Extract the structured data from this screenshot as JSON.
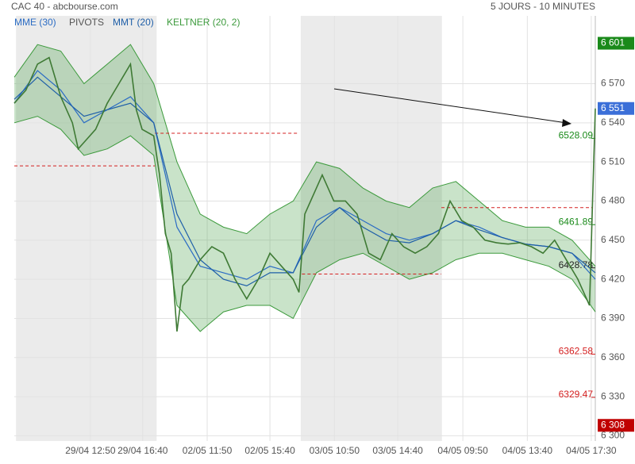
{
  "chart_data": {
    "type": "line",
    "title": "CAC 40 - abcbourse.com",
    "subtitle": "5 JOURS - 10 MINUTES",
    "xlim": [
      0,
      100
    ],
    "ylim": [
      6296,
      6622
    ],
    "xticks": [
      {
        "value": 13.1,
        "label": "29/04 12:50"
      },
      {
        "value": 22.1,
        "label": "29/04 16:40"
      },
      {
        "value": 33.2,
        "label": "02/05 11:50"
      },
      {
        "value": 44.0,
        "label": "02/05 15:40"
      },
      {
        "value": 55.1,
        "label": "03/05 10:50"
      },
      {
        "value": 66.0,
        "label": "03/05 14:40"
      },
      {
        "value": 77.2,
        "label": "04/05 09:50"
      },
      {
        "value": 88.3,
        "label": "04/05 13:40"
      },
      {
        "value": 99.3,
        "label": "04/05 17:30"
      }
    ],
    "yticks": [
      {
        "value": 6300,
        "label": "6 300"
      },
      {
        "value": 6330,
        "label": "6 330"
      },
      {
        "value": 6360,
        "label": "6 360"
      },
      {
        "value": 6390,
        "label": "6 390"
      },
      {
        "value": 6420,
        "label": "6 420"
      },
      {
        "value": 6450,
        "label": "6 450"
      },
      {
        "value": 6480,
        "label": "6 480"
      },
      {
        "value": 6510,
        "label": "6 510"
      },
      {
        "value": 6540,
        "label": "6 540"
      },
      {
        "value": 6570,
        "label": "6 570"
      }
    ],
    "grid": true,
    "shaded_sessions": [
      [
        0.3,
        24.5
      ],
      [
        49.3,
        73.6
      ]
    ],
    "price": {
      "color": "#3f7a35",
      "x": [
        0,
        2,
        4,
        6,
        8,
        10,
        11,
        12,
        14,
        16,
        18,
        20,
        21,
        22,
        24,
        25,
        26,
        27,
        28,
        29,
        30,
        32,
        34,
        36,
        38,
        40,
        42,
        44,
        46,
        48,
        49,
        50,
        52,
        53,
        55,
        57,
        59,
        61,
        63,
        65,
        67,
        69,
        71,
        73,
        75,
        77,
        79,
        81,
        83,
        85,
        87,
        89,
        91,
        93,
        95,
        97,
        98,
        99,
        100
      ],
      "values": [
        6555,
        6565,
        6585,
        6590,
        6560,
        6540,
        6520,
        6525,
        6535,
        6555,
        6570,
        6585,
        6550,
        6535,
        6530,
        6500,
        6455,
        6440,
        6380,
        6415,
        6420,
        6435,
        6445,
        6440,
        6420,
        6405,
        6420,
        6440,
        6430,
        6420,
        6410,
        6470,
        6490,
        6500,
        6480,
        6480,
        6470,
        6440,
        6435,
        6455,
        6445,
        6440,
        6445,
        6455,
        6480,
        6465,
        6460,
        6450,
        6448,
        6447,
        6448,
        6445,
        6440,
        6450,
        6435,
        6420,
        6410,
        6400,
        6551
      ]
    },
    "band_x": [
      0,
      4,
      8,
      12,
      16,
      20,
      24,
      28,
      32,
      36,
      40,
      44,
      48,
      52,
      56,
      60,
      64,
      68,
      72,
      76,
      80,
      84,
      88,
      92,
      96,
      100
    ],
    "keltner": {
      "name": "KELTNER (20, 2)",
      "color": "#3c9a3c",
      "upper": [
        6575,
        6600,
        6595,
        6570,
        6585,
        6600,
        6570,
        6510,
        6470,
        6460,
        6455,
        6470,
        6480,
        6510,
        6505,
        6490,
        6480,
        6475,
        6490,
        6495,
        6480,
        6465,
        6460,
        6460,
        6450,
        6430
      ],
      "lower": [
        6540,
        6545,
        6535,
        6515,
        6520,
        6530,
        6515,
        6400,
        6380,
        6395,
        6400,
        6400,
        6390,
        6425,
        6435,
        6440,
        6430,
        6420,
        6425,
        6435,
        6440,
        6440,
        6435,
        6430,
        6420,
        6395
      ]
    },
    "series": [
      {
        "name": "MME (30)",
        "color": "#2b6cc4",
        "values": [
          6555,
          6580,
          6565,
          6540,
          6550,
          6560,
          6540,
          6460,
          6430,
          6425,
          6420,
          6430,
          6425,
          6465,
          6475,
          6465,
          6455,
          6450,
          6455,
          6465,
          6460,
          6452,
          6447,
          6445,
          6440,
          6420
        ]
      },
      {
        "name": "MMT (20)",
        "color": "#1f5fa8",
        "values": [
          6558,
          6575,
          6560,
          6545,
          6550,
          6555,
          6540,
          6470,
          6435,
          6420,
          6415,
          6425,
          6425,
          6460,
          6475,
          6460,
          6450,
          6448,
          6455,
          6465,
          6458,
          6452,
          6447,
          6445,
          6440,
          6425
        ]
      }
    ],
    "pivots": {
      "name": "PIVOTS",
      "color": "#d42020",
      "segments": [
        {
          "value": 6507,
          "x": [
            0,
            24.2
          ]
        },
        {
          "value": 6532,
          "x": [
            24.2,
            49
          ]
        },
        {
          "value": 6424,
          "x": [
            49.5,
            73.5
          ]
        },
        {
          "value": 6475,
          "x": [
            73.5,
            99.5
          ]
        }
      ],
      "levels": [
        {
          "value": 6528.09,
          "color": "#1a8a1a"
        },
        {
          "value": 6461.89,
          "color": "#1a8a1a"
        },
        {
          "value": 6428.78,
          "color": "#222222"
        },
        {
          "value": 6362.58,
          "color": "#d42020"
        },
        {
          "value": 6329.47,
          "color": "#d42020"
        }
      ]
    },
    "tags": [
      {
        "value": 6601,
        "label": "6 601",
        "color": "#1a8a1a"
      },
      {
        "value": 6551,
        "label": "6 551",
        "color": "#3b6fd8"
      },
      {
        "value": 6308,
        "label": "6 308",
        "color": "#c00000"
      }
    ]
  }
}
